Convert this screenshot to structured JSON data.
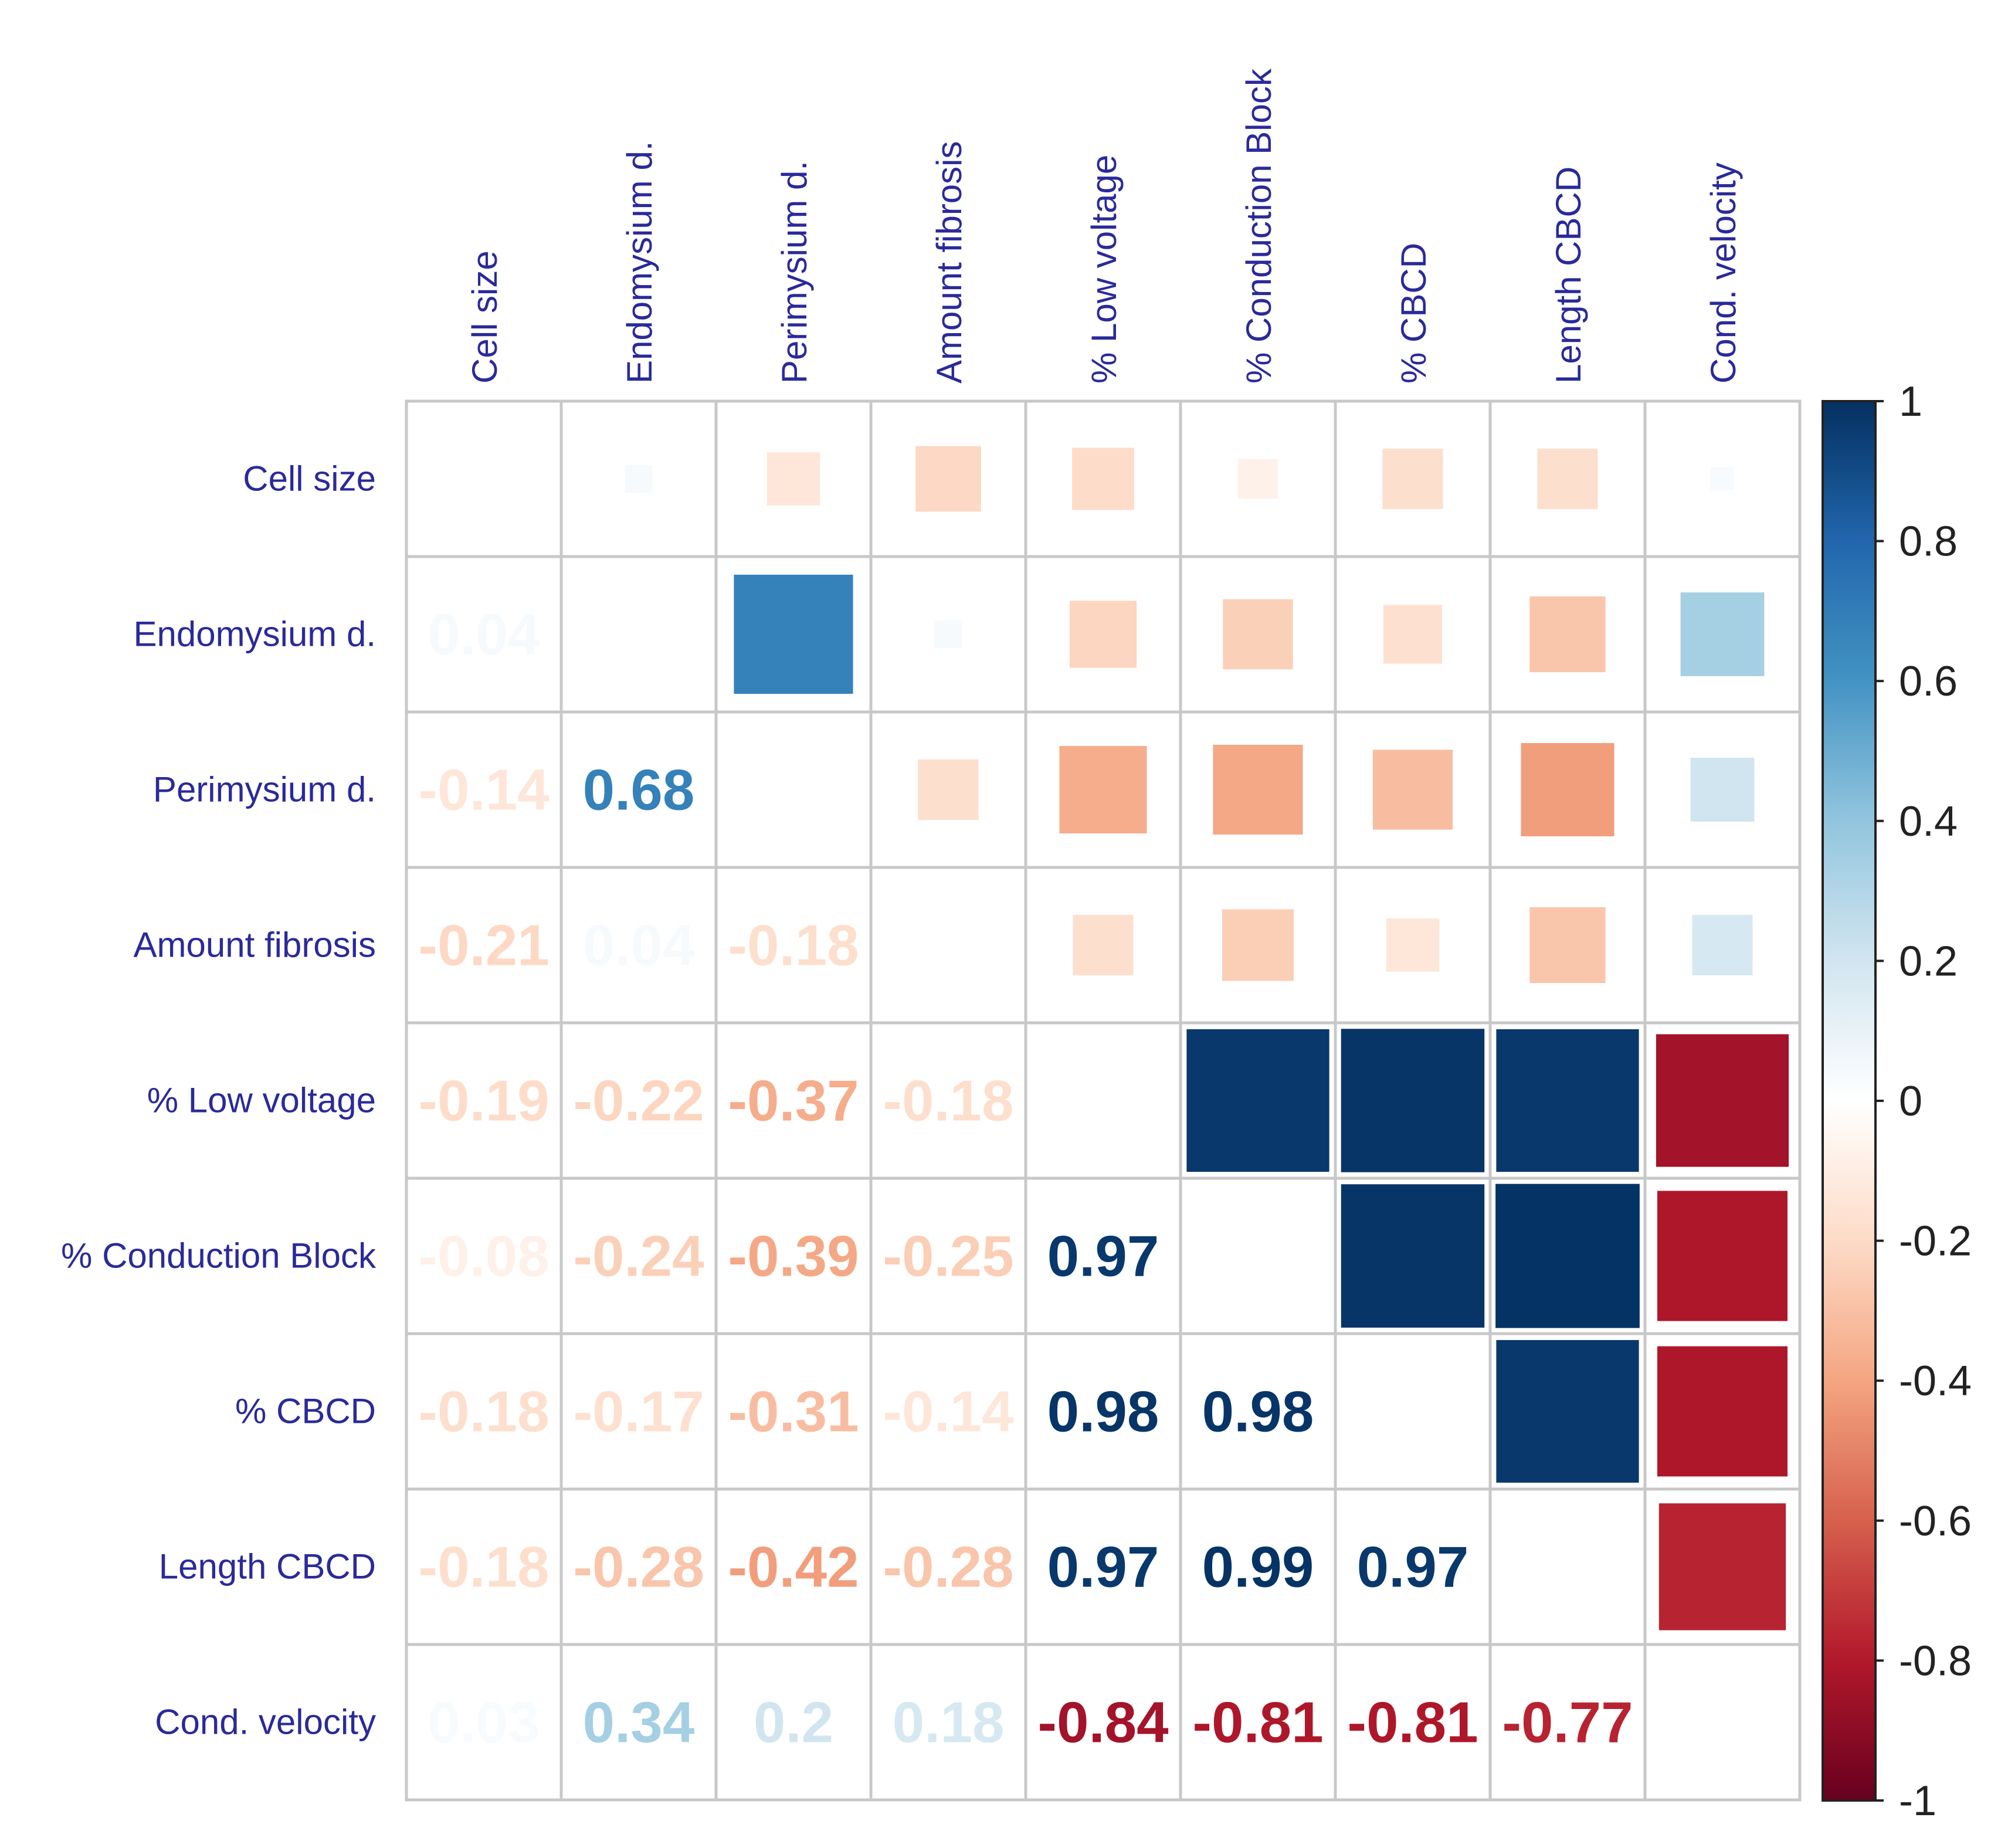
{
  "chart_data": {
    "type": "heatmap",
    "subtype": "correlation-matrix",
    "title": "",
    "variables": [
      "Cell size",
      "Endomysium d.",
      "Perimysium d.",
      "Amount fibrosis",
      "% Low voltage",
      "% Conduction Block",
      "% CBCD",
      "Length CBCD",
      "Cond. velocity"
    ],
    "lower_triangle": [
      [],
      [
        0.04
      ],
      [
        -0.14,
        0.68
      ],
      [
        -0.21,
        0.04,
        -0.18
      ],
      [
        -0.19,
        -0.22,
        -0.37,
        -0.18
      ],
      [
        -0.08,
        -0.24,
        -0.39,
        -0.25,
        0.97
      ],
      [
        -0.18,
        -0.17,
        -0.31,
        -0.14,
        0.98,
        0.98
      ],
      [
        -0.18,
        -0.28,
        -0.42,
        -0.28,
        0.97,
        0.99,
        0.97
      ],
      [
        0.03,
        0.34,
        0.2,
        0.18,
        -0.84,
        -0.81,
        -0.81,
        -0.77
      ]
    ],
    "lower_display": "numbers",
    "upper_display": "squares",
    "color_range": [
      -1,
      1
    ],
    "colorbar_ticks": [
      "1",
      "0.8",
      "0.6",
      "0.4",
      "0.2",
      "0",
      "-0.2",
      "-0.4",
      "-0.6",
      "-0.8",
      "-1"
    ],
    "colorbar_tick_values": [
      1,
      0.8,
      0.6,
      0.4,
      0.2,
      0,
      -0.2,
      -0.4,
      -0.6,
      -0.8,
      -1
    ],
    "colorbar_placement": "right",
    "palette": [
      "#67001F",
      "#B2182B",
      "#D6604D",
      "#F4A582",
      "#FDDBC7",
      "#FFFFFF",
      "#D1E5F0",
      "#92C5DE",
      "#4393C3",
      "#2166AC",
      "#053061"
    ],
    "label_color": "#2A2A9A",
    "grid_color": "#C8C8C8"
  }
}
